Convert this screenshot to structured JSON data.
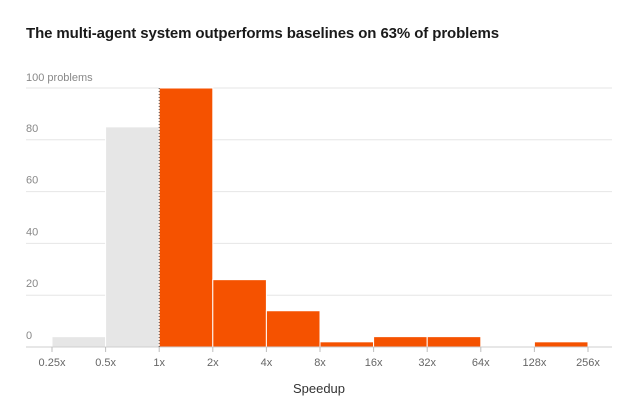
{
  "chart_data": {
    "type": "bar",
    "title": "The multi-agent system outperforms baselines on 63% of problems",
    "xlabel": "Speedup",
    "ylabel": "",
    "y_unit_label": "100 problems",
    "ylim": [
      0,
      100
    ],
    "yticks": [
      0,
      20,
      40,
      60,
      80,
      100
    ],
    "bin_edges": [
      "0.25x",
      "0.5x",
      "1x",
      "2x",
      "4x",
      "8x",
      "16x",
      "32x",
      "64x",
      "128x",
      "256x"
    ],
    "values": [
      4,
      85,
      100,
      26,
      14,
      2,
      4,
      4,
      0,
      2
    ],
    "colors": {
      "slower": "#e6e6e6",
      "faster": "#f55200",
      "grid": "#e6e6e6",
      "baseline_divider": "#555555"
    },
    "grid": true
  }
}
